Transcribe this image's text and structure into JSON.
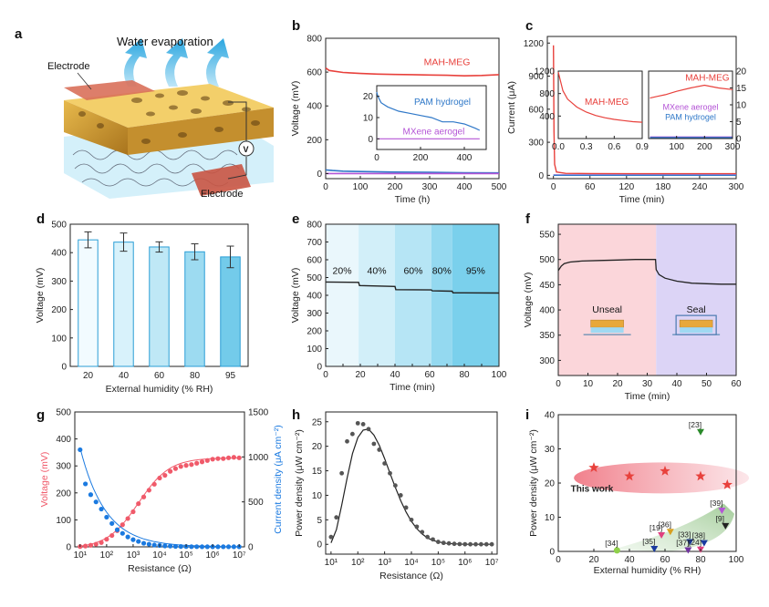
{
  "chart_data": [
    {
      "panel": "a",
      "type": "diagram",
      "labels": [
        "Water evaporation",
        "Electrode",
        "Electrode",
        "V"
      ]
    },
    {
      "panel": "b",
      "type": "line",
      "xlabel": "Time (h)",
      "ylabel": "Voltage (mV)",
      "xlim": [
        0,
        500
      ],
      "ylim": [
        -30,
        800
      ],
      "xticks": [
        0,
        100,
        200,
        300,
        400,
        500
      ],
      "yticks": [
        0,
        200,
        400,
        600,
        800
      ],
      "series": [
        {
          "name": "MAH-MEG",
          "color": "#e8413c",
          "x": [
            0,
            10,
            50,
            100,
            150,
            200,
            250,
            300,
            350,
            400,
            450,
            500
          ],
          "y": [
            625,
            610,
            598,
            592,
            588,
            586,
            585,
            583,
            581,
            578,
            580,
            585
          ]
        },
        {
          "name": "PAM hydrogel",
          "color": "#2f78c8",
          "x": [
            0,
            20,
            50,
            100,
            200,
            300,
            400,
            500
          ],
          "y": [
            22,
            18,
            14,
            12,
            9,
            7,
            5,
            4
          ]
        },
        {
          "name": "MXene aerogel",
          "color": "#b455d6",
          "x": [
            0,
            500
          ],
          "y": [
            0,
            0
          ]
        }
      ],
      "inset": {
        "xlim": [
          0,
          500
        ],
        "ylim": [
          -5,
          25
        ],
        "xticks": [
          0,
          200,
          400
        ],
        "yticks": [
          0,
          10,
          20
        ],
        "series": [
          {
            "name": "PAM hydrogel",
            "color": "#2f78c8",
            "x": [
              0,
              5,
              20,
              50,
              100,
              150,
              200,
              250,
              300,
              350,
              400,
              450,
              470
            ],
            "y": [
              22,
              20,
              17,
              15,
              13,
              12,
              11,
              10,
              8,
              8,
              7,
              5,
              4
            ]
          },
          {
            "name": "MXene aerogel",
            "color": "#b455d6",
            "x": [
              0,
              470
            ],
            "y": [
              0,
              0
            ]
          }
        ]
      }
    },
    {
      "panel": "c",
      "type": "line",
      "xlabel": "Time (min)",
      "ylabel": "Current (μA)",
      "xlim": [
        -10,
        300
      ],
      "ylim": [
        -30,
        1260
      ],
      "xticks": [
        0,
        60,
        120,
        180,
        240,
        300
      ],
      "yticks": [
        0,
        300,
        600,
        900,
        1200
      ],
      "series": [
        {
          "name": "MAH-MEG",
          "color": "#e8413c",
          "x": [
            0,
            0.5,
            1,
            2,
            5,
            20,
            60,
            120,
            180,
            240,
            300
          ],
          "y": [
            1180,
            800,
            400,
            100,
            30,
            18,
            16,
            15,
            15,
            15,
            15
          ]
        },
        {
          "name": "MXene aerogel",
          "color": "#b455d6",
          "x": [
            0,
            300
          ],
          "y": [
            4,
            4
          ]
        },
        {
          "name": "PAM hydrogel",
          "color": "#2f78c8",
          "x": [
            0,
            300
          ],
          "y": [
            1,
            1
          ]
        }
      ],
      "inset_left": {
        "xlim": [
          0,
          0.9
        ],
        "ylim": [
          0,
          1200
        ],
        "xticks": [
          0.0,
          0.3,
          0.6,
          0.9
        ],
        "yticks": [
          400,
          800,
          1200
        ],
        "series": [
          {
            "name": "MAH-MEG",
            "color": "#e8413c",
            "x": [
              0.0,
              0.05,
              0.1,
              0.2,
              0.3,
              0.4,
              0.5,
              0.6,
              0.7,
              0.8,
              0.9
            ],
            "y": [
              1180,
              850,
              700,
              560,
              470,
              410,
              370,
              340,
              320,
              300,
              290
            ]
          }
        ]
      },
      "inset_right": {
        "xlim": [
          0,
          300
        ],
        "ylim": [
          0,
          20
        ],
        "xticks": [
          100,
          200,
          300
        ],
        "yticks": [
          0,
          5,
          10,
          15,
          20
        ],
        "series": [
          {
            "name": "MAH-MEG",
            "color": "#e8413c",
            "x": [
              5,
              30,
              60,
              100,
              150,
              200,
              250,
              300
            ],
            "y": [
              12,
              12.5,
              13,
              14,
              15,
              15.8,
              15,
              14.5
            ]
          },
          {
            "name": "MXene aerogel",
            "color": "#b455d6",
            "x": [
              5,
              300
            ],
            "y": [
              0.5,
              0.5
            ]
          },
          {
            "name": "PAM hydrogel",
            "color": "#2f78c8",
            "x": [
              5,
              300
            ],
            "y": [
              0.3,
              0.3
            ]
          }
        ]
      }
    },
    {
      "panel": "d",
      "type": "bar",
      "xlabel": "External humidity (% RH)",
      "ylabel": "Voltage (mV)",
      "ylim": [
        0,
        500
      ],
      "yticks": [
        0,
        100,
        200,
        300,
        400,
        500
      ],
      "categories": [
        "20",
        "40",
        "60",
        "80",
        "95"
      ],
      "values": [
        445,
        437,
        420,
        403,
        385
      ],
      "errors": [
        28,
        32,
        18,
        28,
        38
      ]
    },
    {
      "panel": "e",
      "type": "line",
      "xlabel": "Time (min)",
      "ylabel": "Voltage (mV)",
      "xlim": [
        0,
        100
      ],
      "ylim": [
        0,
        800
      ],
      "xticks": [
        0,
        10,
        20,
        30,
        40,
        50,
        60,
        70,
        80,
        90,
        100
      ],
      "yticks": [
        0,
        100,
        200,
        300,
        400,
        500,
        600,
        700,
        800
      ],
      "segments": [
        {
          "label": "20%",
          "x0": 0,
          "x1": 19
        },
        {
          "label": "40%",
          "x0": 19,
          "x1": 40
        },
        {
          "label": "60%",
          "x0": 40,
          "x1": 61
        },
        {
          "label": "80%",
          "x0": 61,
          "x1": 73
        },
        {
          "label": "95%",
          "x0": 73,
          "x1": 100
        }
      ],
      "series": [
        {
          "name": "",
          "color": "#222222",
          "x": [
            0,
            19,
            19.5,
            40,
            40.5,
            61,
            61.5,
            73,
            73.5,
            100
          ],
          "y": [
            475,
            473,
            455,
            450,
            432,
            430,
            425,
            423,
            414,
            413
          ]
        }
      ]
    },
    {
      "panel": "f",
      "type": "line",
      "xlabel": "Time (min)",
      "ylabel": "Voltage (mV)",
      "xlim": [
        0,
        60
      ],
      "ylim": [
        270,
        570
      ],
      "xticks": [
        0,
        10,
        20,
        30,
        40,
        50,
        60
      ],
      "yticks": [
        300,
        350,
        400,
        450,
        500,
        550
      ],
      "regions": [
        {
          "label": "Unseal",
          "x0": 0,
          "x1": 33
        },
        {
          "label": "Seal",
          "x0": 33,
          "x1": 60
        }
      ],
      "series": [
        {
          "name": "",
          "color": "#222222",
          "x": [
            0,
            1,
            2,
            4,
            8,
            14,
            20,
            26,
            32.8,
            33,
            34,
            36,
            40,
            45,
            50,
            55,
            60
          ],
          "y": [
            478,
            487,
            492,
            495,
            497,
            498,
            499,
            500,
            500,
            480,
            470,
            463,
            457,
            453,
            452,
            451,
            451
          ]
        }
      ]
    },
    {
      "panel": "g",
      "type": "scatter",
      "xlabel": "Resistance (Ω)",
      "ylabel": "Voltage (mV)",
      "y2label": "Current density (μA cm⁻²)",
      "xscale": "log",
      "xlim": [
        1,
        7
      ],
      "ylim": [
        0,
        500
      ],
      "y2lim": [
        0,
        1500
      ],
      "xticks": [
        "10¹",
        "10²",
        "10³",
        "10⁴",
        "10⁵",
        "10⁶",
        "10⁷"
      ],
      "yticks": [
        0,
        100,
        200,
        300,
        400,
        500
      ],
      "y2ticks": [
        0,
        500,
        1000,
        1500
      ],
      "series": [
        {
          "name": "Voltage",
          "color": "#f05a6a",
          "log10x": [
            1.0,
            1.2,
            1.4,
            1.6,
            1.8,
            2.0,
            2.2,
            2.4,
            2.6,
            2.8,
            3.0,
            3.2,
            3.4,
            3.6,
            3.8,
            4.0,
            4.2,
            4.4,
            4.6,
            4.8,
            5.0,
            5.2,
            5.4,
            5.6,
            5.8,
            6.0,
            6.2,
            6.4,
            6.6,
            6.8,
            7.0
          ],
          "y": [
            1,
            3,
            6,
            10,
            16,
            28,
            42,
            60,
            82,
            105,
            130,
            160,
            185,
            210,
            232,
            255,
            265,
            280,
            290,
            298,
            302,
            305,
            310,
            315,
            320,
            325,
            327,
            327,
            330,
            332,
            330
          ]
        },
        {
          "name": "Current density",
          "color": "#1b7ae0",
          "axis": "right",
          "log10x": [
            1.0,
            1.2,
            1.4,
            1.6,
            1.8,
            2.0,
            2.2,
            2.4,
            2.6,
            2.8,
            3.0,
            3.2,
            3.4,
            3.6,
            3.8,
            4.0,
            4.2,
            4.4,
            4.6,
            4.8,
            5.0,
            5.2,
            5.4,
            5.6,
            5.8,
            6.0,
            6.2,
            6.4,
            6.6,
            6.8,
            7.0
          ],
          "y": [
            1080,
            700,
            580,
            500,
            420,
            330,
            260,
            190,
            150,
            110,
            80,
            60,
            40,
            30,
            20,
            15,
            10,
            8,
            5,
            4,
            3,
            2,
            2,
            1,
            1,
            1,
            1,
            1,
            1,
            1,
            1
          ]
        }
      ]
    },
    {
      "panel": "h",
      "type": "scatter",
      "xlabel": "Resistance (Ω)",
      "ylabel": "Power density (μW cm⁻²)",
      "xscale": "log",
      "xlim": [
        1,
        7
      ],
      "ylim": [
        -2,
        27
      ],
      "xticks": [
        "10¹",
        "10²",
        "10³",
        "10⁴",
        "10⁵",
        "10⁶",
        "10⁷"
      ],
      "yticks": [
        0,
        5,
        10,
        15,
        20,
        25
      ],
      "series": [
        {
          "name": "",
          "color": "#555555",
          "log10x": [
            1.0,
            1.2,
            1.4,
            1.6,
            1.8,
            2.0,
            2.2,
            2.4,
            2.6,
            2.8,
            3.0,
            3.2,
            3.4,
            3.6,
            3.8,
            4.0,
            4.2,
            4.4,
            4.6,
            4.8,
            5.0,
            5.2,
            5.4,
            5.6,
            5.8,
            6.0,
            6.2,
            6.4,
            6.6,
            6.8,
            7.0
          ],
          "y": [
            1.5,
            5.5,
            14.5,
            21,
            22.5,
            24.7,
            24.5,
            23.5,
            20.5,
            19.3,
            16.5,
            14.5,
            12,
            10,
            7.5,
            5,
            3.6,
            2.5,
            1.5,
            1,
            0.5,
            0.3,
            0.2,
            0.1,
            0.05,
            0.02,
            0.01,
            0.01,
            0.01,
            0.01,
            0.01
          ]
        },
        {
          "name": "",
          "color": "#222222",
          "type": "line",
          "log10x": [
            1.0,
            1.2,
            1.4,
            1.6,
            1.8,
            2.0,
            2.2,
            2.4,
            2.6,
            2.8,
            3.0,
            3.2,
            3.4,
            3.6,
            3.8,
            4.0,
            4.2,
            4.4,
            4.6,
            4.8,
            5.0,
            5.3,
            5.6,
            6.0,
            6.5,
            7.0
          ],
          "y": [
            0.3,
            3,
            8,
            13.5,
            18.5,
            21.8,
            23.3,
            23.5,
            22.3,
            20.2,
            17.5,
            14.5,
            11.6,
            8.9,
            6.6,
            4.7,
            3.2,
            2.1,
            1.3,
            0.8,
            0.5,
            0.2,
            0.1,
            0,
            0,
            0
          ]
        }
      ]
    },
    {
      "panel": "i",
      "type": "scatter",
      "xlabel": "External humidity (% RH)",
      "ylabel": "Power density (μW cm⁻²)",
      "xlim": [
        0,
        100
      ],
      "ylim": [
        0,
        40
      ],
      "xticks": [
        0,
        20,
        40,
        60,
        80,
        100
      ],
      "yticks": [
        0,
        10,
        20,
        30,
        40
      ],
      "this_work_label": "This work",
      "this_work": {
        "x": [
          20,
          40,
          60,
          80,
          95
        ],
        "y": [
          24.5,
          22,
          23.5,
          22,
          19.5
        ],
        "color": "#e8413c"
      },
      "references": [
        {
          "label": "[23]",
          "x": 80,
          "y": 35,
          "color": "#2a8a2a"
        },
        {
          "label": "[39]",
          "x": 92,
          "y": 12,
          "color": "#b455d6"
        },
        {
          "label": "[9]",
          "x": 94,
          "y": 7.5,
          "color": "#222222"
        },
        {
          "label": "[36]",
          "x": 63,
          "y": 5.8,
          "color": "#d8a020"
        },
        {
          "label": "[19]",
          "x": 58,
          "y": 4.8,
          "color": "#e04080"
        },
        {
          "label": "[33]",
          "x": 74,
          "y": 2.8,
          "color": "#1a3aa0"
        },
        {
          "label": "[38]",
          "x": 82,
          "y": 2.5,
          "color": "#1a3aa0"
        },
        {
          "label": "[34]",
          "x": 33,
          "y": 0.3,
          "color": "#8fd04a"
        },
        {
          "label": "[35]",
          "x": 54,
          "y": 0.8,
          "color": "#1a3aa0"
        },
        {
          "label": "[37]",
          "x": 73,
          "y": 0.4,
          "color": "#7030a0"
        },
        {
          "label": "[24]",
          "x": 80,
          "y": 0.6,
          "color": "#e04080"
        }
      ]
    }
  ]
}
